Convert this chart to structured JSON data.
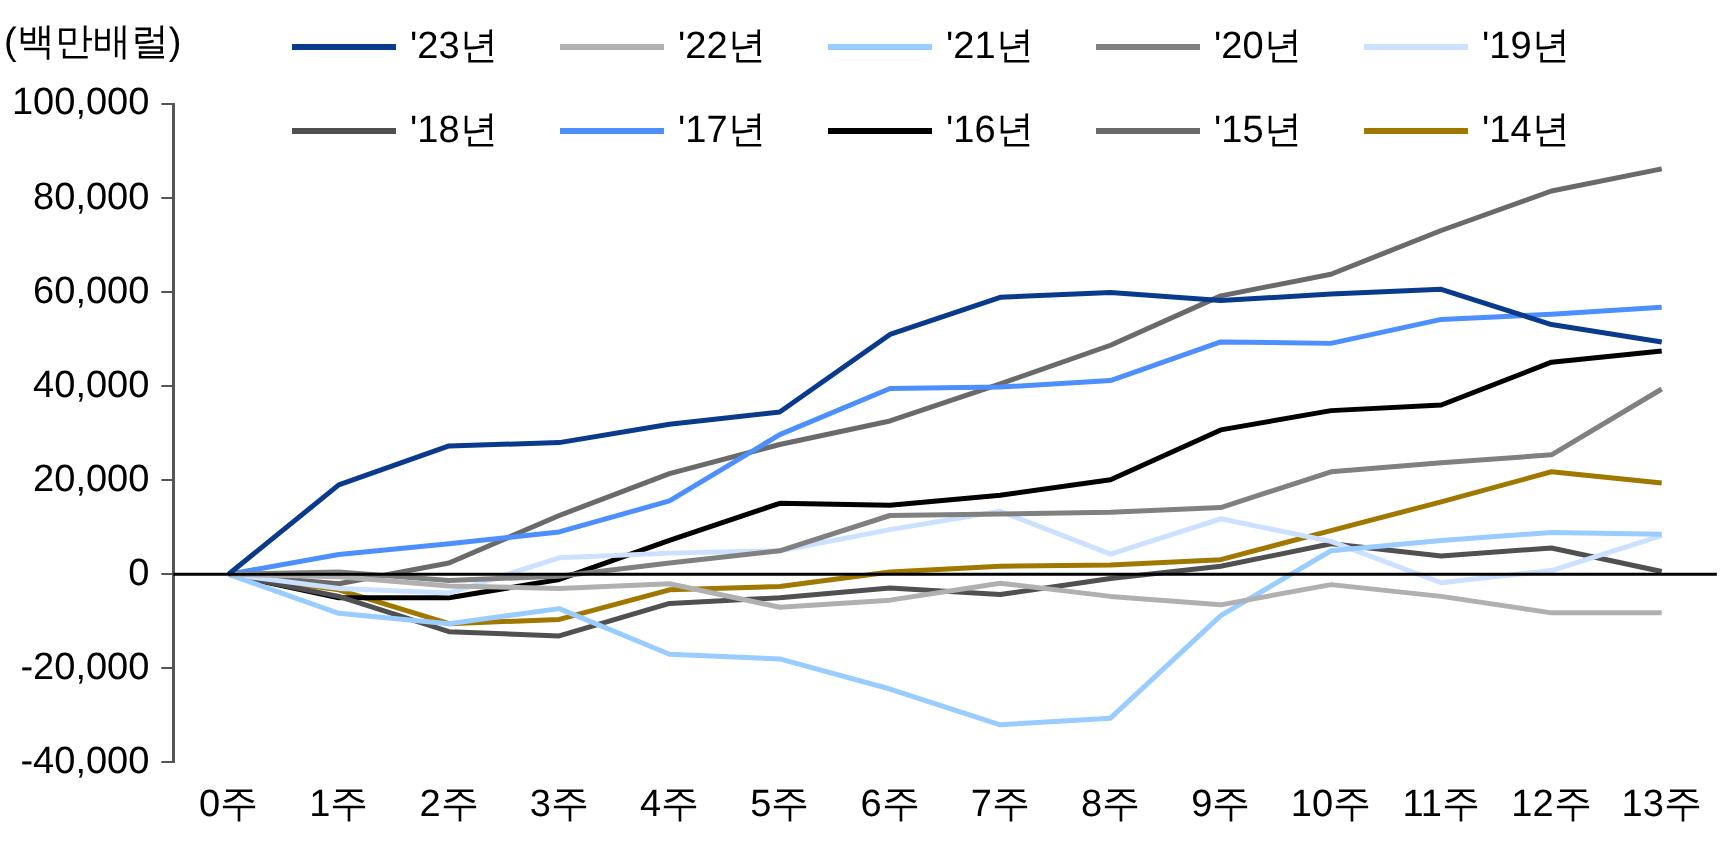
{
  "chart_data": {
    "type": "line",
    "ylabel": "(백만배럴)",
    "categories": [
      "0주",
      "1주",
      "2주",
      "3주",
      "4주",
      "5주",
      "6주",
      "7주",
      "8주",
      "9주",
      "10주",
      "11주",
      "12주",
      "13주"
    ],
    "ylim": [
      -40000,
      100000
    ],
    "yticks": [
      {
        "value": -40000,
        "label": "-40,000"
      },
      {
        "value": -20000,
        "label": "-20,000"
      },
      {
        "value": 0,
        "label": "0"
      },
      {
        "value": 20000,
        "label": "20,000"
      },
      {
        "value": 40000,
        "label": "40,000"
      },
      {
        "value": 60000,
        "label": "60,000"
      },
      {
        "value": 80000,
        "label": "80,000"
      },
      {
        "value": 100000,
        "label": "100,000"
      }
    ],
    "grid": false,
    "ref_lines": [
      {
        "axis": "y",
        "value": 0,
        "color": "#000000"
      }
    ],
    "legend": "top",
    "marker": "none",
    "line_style": "solid",
    "series": [
      {
        "name": "'23년",
        "color": "#0a3a8c",
        "values": [
          0,
          19000,
          27300,
          28000,
          31900,
          34500,
          51000,
          58900,
          59900,
          58200,
          59600,
          60600,
          53100,
          49400
        ]
      },
      {
        "name": "'22년",
        "color": "#b0b0b0",
        "values": [
          0,
          -500,
          -2500,
          -3000,
          -2000,
          -7000,
          -5500,
          -1900,
          -4700,
          -6500,
          -2200,
          -4700,
          -8200,
          -8200
        ]
      },
      {
        "name": "'21년",
        "color": "#99ccff",
        "values": [
          0,
          -8300,
          -10500,
          -7300,
          -17000,
          -18000,
          -24400,
          -32000,
          -30600,
          -8800,
          5000,
          7200,
          8900,
          8500
        ]
      },
      {
        "name": "'20년",
        "color": "#808080",
        "values": [
          0,
          500,
          -1300,
          -400,
          2400,
          5000,
          12500,
          12800,
          13200,
          14200,
          21800,
          23700,
          25400,
          39400
        ]
      },
      {
        "name": "'19년",
        "color": "#cce0ff",
        "values": [
          0,
          -3000,
          -4000,
          3500,
          4500,
          5000,
          9500,
          13400,
          4300,
          11800,
          7000,
          -1800,
          800,
          8200
        ]
      },
      {
        "name": "'18년",
        "color": "#505050",
        "values": [
          0,
          -4700,
          -12200,
          -13100,
          -6200,
          -5000,
          -2900,
          -4300,
          -900,
          1700,
          6500,
          3900,
          5600,
          600
        ]
      },
      {
        "name": "'17년",
        "color": "#4d8fff",
        "values": [
          0,
          4200,
          6500,
          9000,
          15600,
          29700,
          39500,
          39800,
          41200,
          49400,
          49100,
          54200,
          55300,
          56800
        ]
      },
      {
        "name": "'16년",
        "color": "#000000",
        "values": [
          0,
          -5000,
          -5000,
          -1100,
          7200,
          15100,
          14700,
          16800,
          20100,
          30700,
          34800,
          36000,
          45100,
          47500
        ]
      },
      {
        "name": "'15년",
        "color": "#6a6a6a",
        "values": [
          0,
          -2000,
          2400,
          12500,
          21400,
          27600,
          32600,
          40500,
          48700,
          59200,
          63800,
          73100,
          81500,
          86200
        ]
      },
      {
        "name": "'14년",
        "color": "#a07800",
        "values": [
          0,
          -3300,
          -10500,
          -9600,
          -3300,
          -2600,
          500,
          1700,
          2000,
          3100,
          9300,
          15400,
          21800,
          19400
        ]
      }
    ]
  }
}
